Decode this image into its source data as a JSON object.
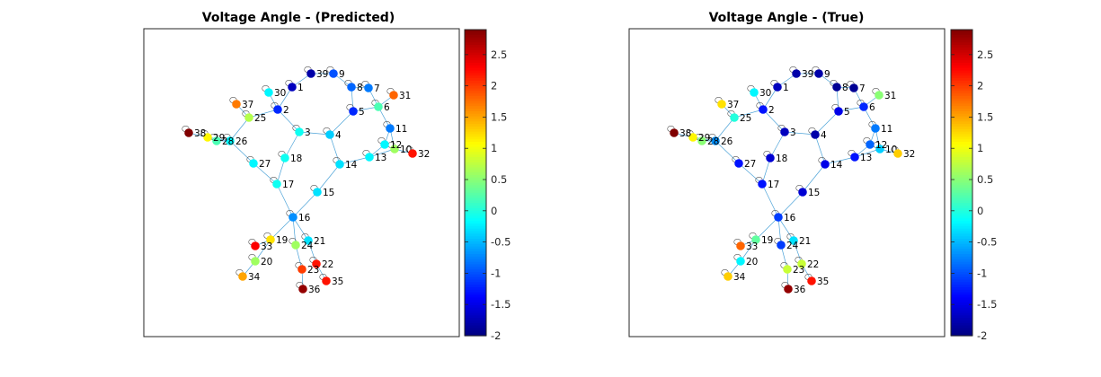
{
  "chart_data": [
    {
      "type": "network-graph",
      "title": "Voltage Angle - (Predicted)",
      "colormap": "jet",
      "clim": [
        -2,
        2.9
      ],
      "colorbar_ticks": [
        2.5,
        2,
        1.5,
        1,
        0.5,
        0,
        -0.5,
        -1,
        -1.5,
        -2
      ],
      "node_values": {
        "1": -1.7,
        "2": -1.2,
        "3": -0.1,
        "4": -0.4,
        "5": -1.2,
        "6": 0.2,
        "7": -0.8,
        "8": -0.9,
        "9": -1.0,
        "10": 0.6,
        "11": -0.8,
        "12": -0.2,
        "13": -0.2,
        "14": -0.3,
        "15": -0.3,
        "16": -0.7,
        "17": -0.1,
        "18": -0.1,
        "19": 1.2,
        "20": 0.6,
        "21": -0.3,
        "22": 2.2,
        "23": 2.0,
        "24": 0.6,
        "25": 0.7,
        "26": -0.2,
        "27": -0.2,
        "28": 0.2,
        "29": 1.1,
        "30": -0.2,
        "31": 1.8,
        "32": 2.2,
        "33": 2.3,
        "34": 1.5,
        "35": 2.2,
        "36": 2.8,
        "37": 1.7,
        "38": 2.9,
        "39": -1.8
      }
    },
    {
      "type": "network-graph",
      "title": "Voltage Angle - (True)",
      "colormap": "jet",
      "clim": [
        -2,
        2.9
      ],
      "colorbar_ticks": [
        2.5,
        2,
        1.5,
        1,
        0.5,
        0,
        -0.5,
        -1,
        -1.5,
        -2
      ],
      "node_values": {
        "1": -1.7,
        "2": -1.3,
        "3": -1.7,
        "4": -1.8,
        "5": -1.5,
        "6": -1.2,
        "7": -1.9,
        "8": -1.9,
        "9": -1.8,
        "10": -0.4,
        "11": -0.8,
        "12": -0.9,
        "13": -1.3,
        "14": -1.5,
        "15": -1.6,
        "16": -1.1,
        "17": -1.3,
        "18": -1.6,
        "19": 0.3,
        "20": -0.2,
        "21": -0.3,
        "22": 0.8,
        "23": 0.8,
        "24": -1.1,
        "25": 0.0,
        "26": -0.7,
        "27": -1.3,
        "28": 0.5,
        "29": 1.1,
        "30": -0.2,
        "31": 0.5,
        "32": 1.3,
        "33": 1.8,
        "34": 1.3,
        "35": 2.2,
        "36": 2.8,
        "37": 1.2,
        "38": 2.9,
        "39": -1.8
      }
    }
  ],
  "graph": {
    "labels": [
      "1",
      "2",
      "3",
      "4",
      "5",
      "6",
      "7",
      "8",
      "9",
      "10",
      "11",
      "12",
      "13",
      "14",
      "15",
      "16",
      "17",
      "18",
      "19",
      "20",
      "21",
      "22",
      "23",
      "24",
      "25",
      "26",
      "27",
      "28",
      "29",
      "30",
      "31",
      "32",
      "33",
      "34",
      "35",
      "36",
      "37",
      "38",
      "39"
    ],
    "edges": [
      [
        1,
        39
      ],
      [
        1,
        2
      ],
      [
        2,
        30
      ],
      [
        2,
        3
      ],
      [
        2,
        25
      ],
      [
        3,
        4
      ],
      [
        3,
        18
      ],
      [
        4,
        5
      ],
      [
        4,
        14
      ],
      [
        5,
        6
      ],
      [
        5,
        8
      ],
      [
        6,
        7
      ],
      [
        6,
        11
      ],
      [
        6,
        31
      ],
      [
        7,
        8
      ],
      [
        8,
        9
      ],
      [
        9,
        39
      ],
      [
        10,
        11
      ],
      [
        10,
        13
      ],
      [
        10,
        32
      ],
      [
        12,
        11
      ],
      [
        12,
        13
      ],
      [
        13,
        14
      ],
      [
        14,
        15
      ],
      [
        15,
        16
      ],
      [
        16,
        17
      ],
      [
        16,
        19
      ],
      [
        16,
        21
      ],
      [
        16,
        24
      ],
      [
        17,
        18
      ],
      [
        17,
        27
      ],
      [
        19,
        33
      ],
      [
        19,
        20
      ],
      [
        20,
        34
      ],
      [
        21,
        22
      ],
      [
        22,
        35
      ],
      [
        23,
        24
      ],
      [
        23,
        36
      ],
      [
        25,
        26
      ],
      [
        25,
        37
      ],
      [
        26,
        27
      ],
      [
        26,
        28
      ],
      [
        26,
        29
      ],
      [
        28,
        29
      ],
      [
        29,
        38
      ]
    ]
  }
}
